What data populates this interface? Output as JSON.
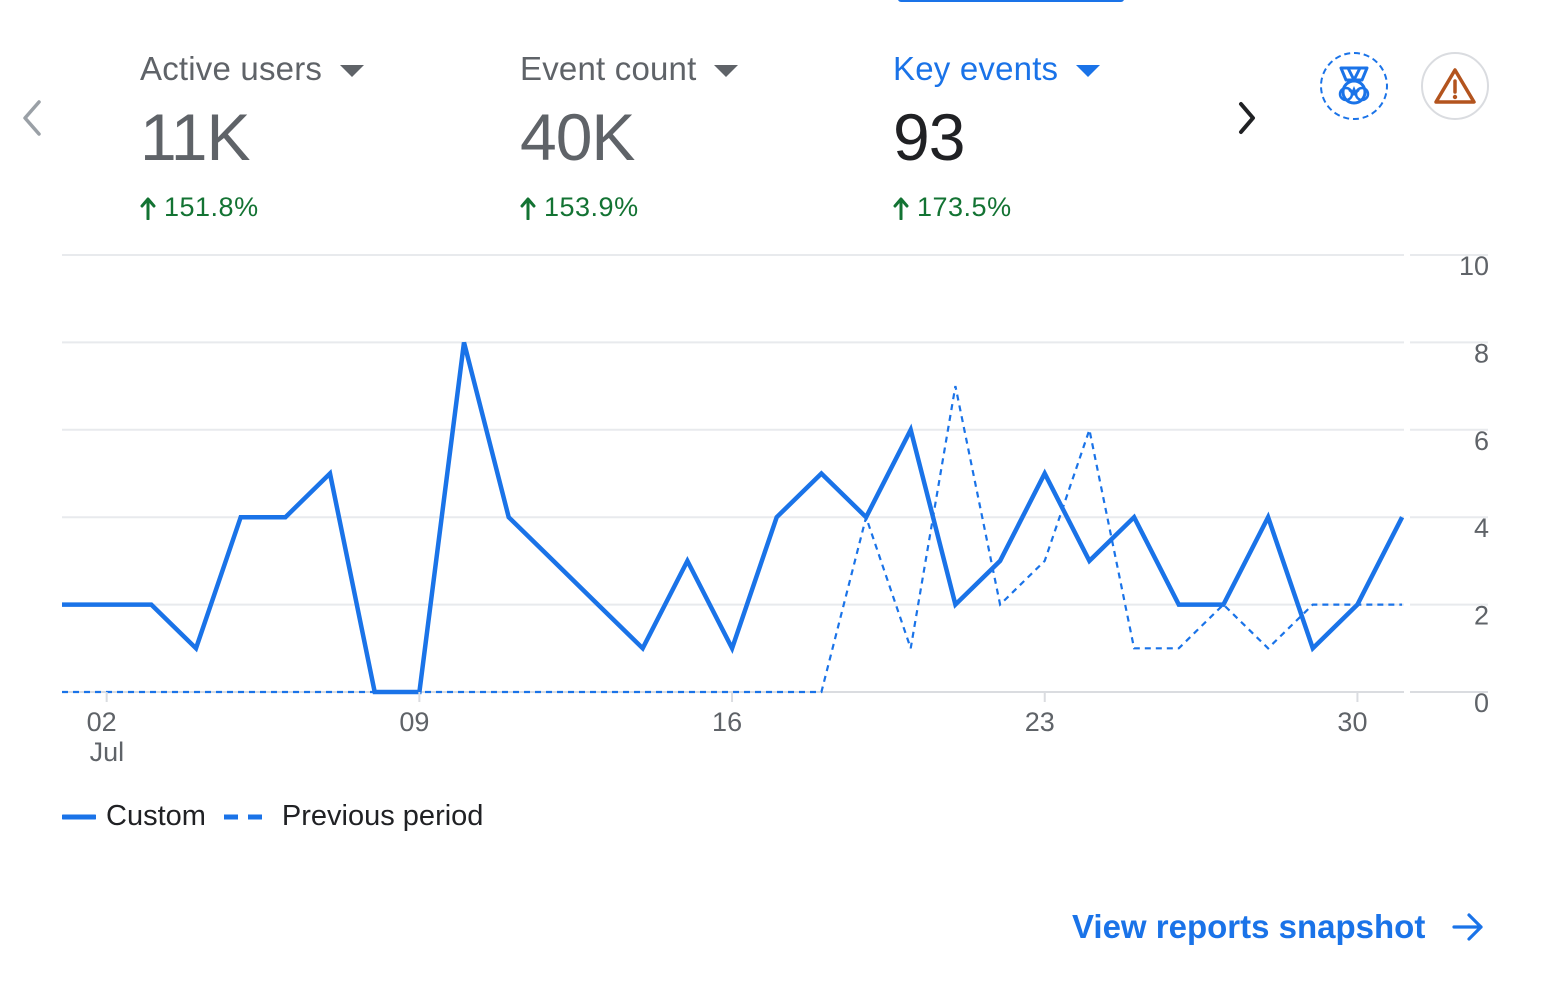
{
  "metrics": [
    {
      "label": "Active users",
      "value": "11K",
      "change": "151.8%",
      "selected": false
    },
    {
      "label": "Event count",
      "value": "40K",
      "change": "153.9%",
      "selected": false
    },
    {
      "label": "Key events",
      "value": "93",
      "change": "173.5%",
      "selected": true
    }
  ],
  "icons": {
    "prev": "chevron-left-icon",
    "next": "chevron-right-icon",
    "insights": "medal-insights-icon",
    "warning": "warning-triangle-icon",
    "change": "arrow-up-icon",
    "link": "arrow-right-icon"
  },
  "colors": {
    "accent": "#1a73e8",
    "positive": "#137333",
    "warning": "#b3541e",
    "grid": "#e8eaed"
  },
  "chart_data": {
    "type": "line",
    "x": [
      "2024-07-01",
      "2024-07-02",
      "2024-07-03",
      "2024-07-04",
      "2024-07-05",
      "2024-07-06",
      "2024-07-07",
      "2024-07-08",
      "2024-07-09",
      "2024-07-10",
      "2024-07-11",
      "2024-07-12",
      "2024-07-13",
      "2024-07-14",
      "2024-07-15",
      "2024-07-16",
      "2024-07-17",
      "2024-07-18",
      "2024-07-19",
      "2024-07-20",
      "2024-07-21",
      "2024-07-22",
      "2024-07-23",
      "2024-07-24",
      "2024-07-25",
      "2024-07-26",
      "2024-07-27",
      "2024-07-28",
      "2024-07-29",
      "2024-07-30",
      "2024-07-31"
    ],
    "series": [
      {
        "name": "Custom",
        "style": "solid",
        "values": [
          2,
          2,
          2,
          1,
          4,
          4,
          5,
          0,
          0,
          8,
          4,
          3,
          2,
          1,
          3,
          1,
          4,
          5,
          4,
          6,
          2,
          3,
          5,
          3,
          4,
          2,
          2,
          4,
          1,
          2,
          4
        ]
      },
      {
        "name": "Previous period",
        "style": "dashed",
        "values": [
          0,
          0,
          0,
          0,
          0,
          0,
          0,
          0,
          0,
          0,
          0,
          0,
          0,
          0,
          0,
          0,
          0,
          0,
          4,
          1,
          7,
          2,
          3,
          6,
          1,
          1,
          2,
          1,
          2,
          2,
          2
        ]
      }
    ],
    "x_ticks": [
      {
        "date": "2024-07-02",
        "label": "02",
        "sublabel": "Jul"
      },
      {
        "date": "2024-07-09",
        "label": "09",
        "sublabel": ""
      },
      {
        "date": "2024-07-16",
        "label": "16",
        "sublabel": ""
      },
      {
        "date": "2024-07-23",
        "label": "23",
        "sublabel": ""
      },
      {
        "date": "2024-07-30",
        "label": "30",
        "sublabel": ""
      }
    ],
    "y_ticks": [
      0,
      2,
      4,
      6,
      8,
      10
    ],
    "ylim": [
      0,
      10
    ],
    "y_axis_side": "right",
    "grid": true,
    "legend_position": "bottom-left"
  },
  "legend": {
    "custom_label": "Custom",
    "previous_label": "Previous period"
  },
  "footer": {
    "link_label": "View reports snapshot"
  }
}
